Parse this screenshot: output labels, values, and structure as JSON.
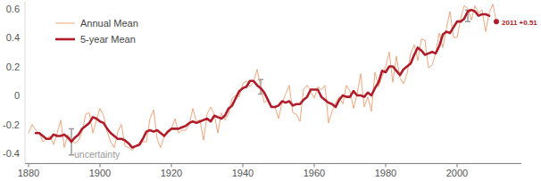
{
  "chart_data": {
    "type": "line",
    "x": [
      1880,
      1881,
      1882,
      1883,
      1884,
      1885,
      1886,
      1887,
      1888,
      1889,
      1890,
      1891,
      1892,
      1893,
      1894,
      1895,
      1896,
      1897,
      1898,
      1899,
      1900,
      1901,
      1902,
      1903,
      1904,
      1905,
      1906,
      1907,
      1908,
      1909,
      1910,
      1911,
      1912,
      1913,
      1914,
      1915,
      1916,
      1917,
      1918,
      1919,
      1920,
      1921,
      1922,
      1923,
      1924,
      1925,
      1926,
      1927,
      1928,
      1929,
      1930,
      1931,
      1932,
      1933,
      1934,
      1935,
      1936,
      1937,
      1938,
      1939,
      1940,
      1941,
      1942,
      1943,
      1944,
      1945,
      1946,
      1947,
      1948,
      1949,
      1950,
      1951,
      1952,
      1953,
      1954,
      1955,
      1956,
      1957,
      1958,
      1959,
      1960,
      1961,
      1962,
      1963,
      1964,
      1965,
      1966,
      1967,
      1968,
      1969,
      1970,
      1971,
      1972,
      1973,
      1974,
      1975,
      1976,
      1977,
      1978,
      1979,
      1980,
      1981,
      1982,
      1983,
      1984,
      1985,
      1986,
      1987,
      1988,
      1989,
      1990,
      1991,
      1992,
      1993,
      1994,
      1995,
      1996,
      1997,
      1998,
      1999,
      2000,
      2001,
      2002,
      2003,
      2004,
      2005,
      2006,
      2007,
      2008,
      2009,
      2010,
      2011
    ],
    "series": [
      {
        "name": "Annual Mean",
        "color": "#f5a57c",
        "values": [
          -0.26,
          -0.2,
          -0.24,
          -0.26,
          -0.32,
          -0.3,
          -0.28,
          -0.34,
          -0.26,
          -0.17,
          -0.36,
          -0.27,
          -0.31,
          -0.33,
          -0.31,
          -0.25,
          -0.13,
          -0.12,
          -0.26,
          -0.17,
          -0.09,
          -0.14,
          -0.25,
          -0.32,
          -0.36,
          -0.25,
          -0.2,
          -0.35,
          -0.36,
          -0.38,
          -0.35,
          -0.35,
          -0.32,
          -0.32,
          -0.16,
          -0.1,
          -0.3,
          -0.36,
          -0.28,
          -0.24,
          -0.23,
          -0.16,
          -0.26,
          -0.24,
          -0.24,
          -0.2,
          -0.09,
          -0.18,
          -0.17,
          -0.31,
          -0.13,
          -0.08,
          -0.13,
          -0.26,
          -0.12,
          -0.17,
          -0.13,
          -0.02,
          0.0,
          -0.01,
          0.08,
          0.1,
          0.06,
          0.09,
          0.18,
          0.06,
          -0.05,
          -0.03,
          -0.07,
          -0.08,
          -0.16,
          -0.05,
          0.01,
          0.07,
          -0.12,
          -0.13,
          -0.18,
          0.04,
          0.07,
          0.03,
          -0.02,
          0.06,
          0.04,
          0.07,
          -0.19,
          -0.11,
          -0.05,
          -0.01,
          -0.06,
          0.07,
          0.03,
          -0.09,
          0.01,
          0.15,
          -0.08,
          -0.01,
          -0.11,
          0.16,
          0.06,
          0.13,
          0.2,
          0.3,
          0.09,
          0.27,
          0.12,
          0.08,
          0.15,
          0.29,
          0.35,
          0.24,
          0.39,
          0.38,
          0.19,
          0.21,
          0.29,
          0.43,
          0.33,
          0.46,
          0.58,
          0.4,
          0.4,
          0.53,
          0.62,
          0.6,
          0.52,
          0.62,
          0.57,
          0.59,
          0.44,
          0.57,
          0.63,
          0.51
        ]
      },
      {
        "name": "5-year Mean",
        "color": "#b01c2a",
        "values": [
          null,
          null,
          -0.26,
          -0.26,
          -0.28,
          -0.3,
          -0.3,
          -0.27,
          -0.28,
          -0.28,
          -0.27,
          -0.29,
          -0.32,
          -0.29,
          -0.27,
          -0.23,
          -0.21,
          -0.19,
          -0.15,
          -0.16,
          -0.18,
          -0.19,
          -0.23,
          -0.26,
          -0.28,
          -0.3,
          -0.3,
          -0.31,
          -0.33,
          -0.36,
          -0.35,
          -0.34,
          -0.3,
          -0.25,
          -0.24,
          -0.25,
          -0.24,
          -0.26,
          -0.28,
          -0.25,
          -0.23,
          -0.23,
          -0.23,
          -0.22,
          -0.21,
          -0.19,
          -0.18,
          -0.19,
          -0.18,
          -0.17,
          -0.16,
          -0.18,
          -0.14,
          -0.15,
          -0.16,
          -0.14,
          -0.09,
          -0.07,
          -0.02,
          0.03,
          0.05,
          0.06,
          0.1,
          0.1,
          0.07,
          0.05,
          0.02,
          -0.03,
          -0.08,
          -0.08,
          -0.07,
          -0.04,
          -0.05,
          -0.04,
          -0.07,
          -0.06,
          -0.06,
          -0.03,
          -0.01,
          0.04,
          0.04,
          0.04,
          -0.01,
          -0.03,
          -0.05,
          -0.06,
          -0.08,
          -0.03,
          0.0,
          -0.01,
          -0.01,
          0.03,
          0.0,
          0.0,
          -0.01,
          0.02,
          0.0,
          0.05,
          0.09,
          0.17,
          0.16,
          0.2,
          0.2,
          0.17,
          0.14,
          0.18,
          0.2,
          0.22,
          0.28,
          0.33,
          0.31,
          0.28,
          0.29,
          0.3,
          0.29,
          0.34,
          0.42,
          0.44,
          0.43,
          0.47,
          0.51,
          0.51,
          0.53,
          0.58,
          0.59,
          0.58,
          0.55,
          0.56,
          0.56,
          0.55,
          null,
          null
        ]
      }
    ],
    "error_bars": [
      {
        "x": 1892,
        "value": -0.32,
        "error": 0.09
      },
      {
        "x": 1945,
        "value": 0.06,
        "error": 0.05
      },
      {
        "x": 2003,
        "value": 0.55,
        "error": 0.04
      }
    ],
    "annotations": [
      {
        "text": "uncertainty"
      },
      {
        "text": "2011 +0.51",
        "x": 2011,
        "y": 0.51
      }
    ],
    "xlim": [
      1879,
      2018
    ],
    "xticks": [
      1880,
      1900,
      1920,
      1940,
      1960,
      1980,
      2000
    ],
    "ylim": [
      -0.47,
      0.65
    ],
    "yticks": [
      -0.4,
      -0.2,
      0,
      0.2,
      0.4,
      0.6
    ],
    "grid": false,
    "legend": "upper left"
  }
}
